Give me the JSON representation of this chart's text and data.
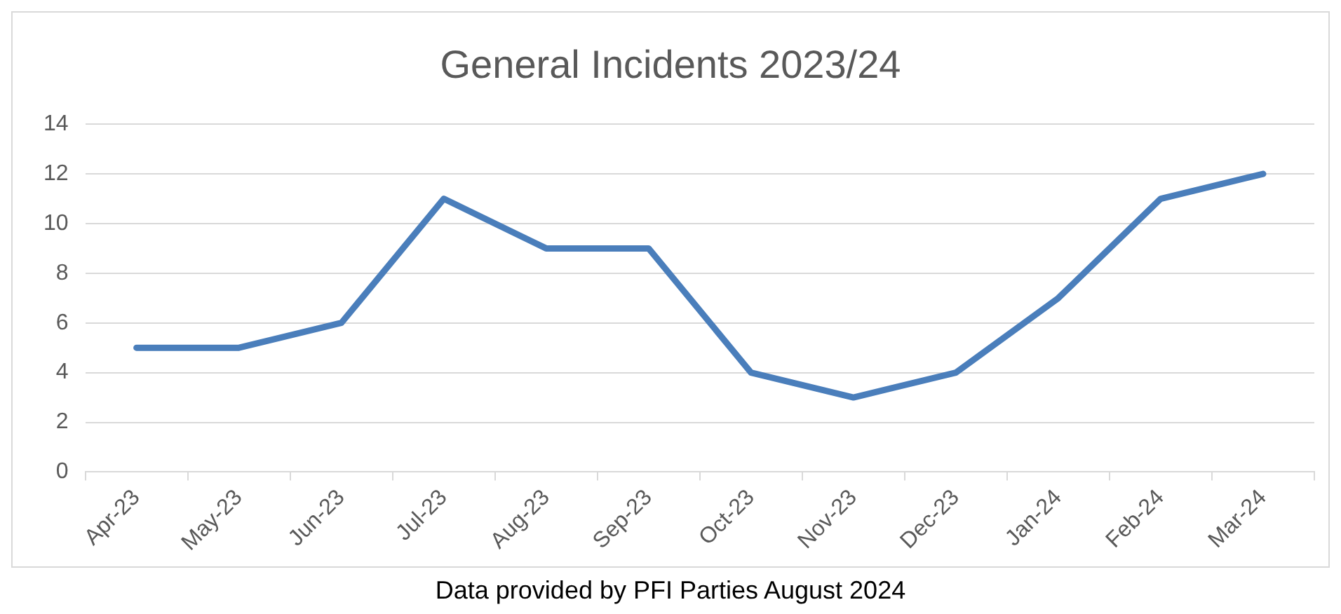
{
  "chart_data": {
    "type": "line",
    "title": "General Incidents 2023/24",
    "categories": [
      "Apr-23",
      "May-23",
      "Jun-23",
      "Jul-23",
      "Aug-23",
      "Sep-23",
      "Oct-23",
      "Nov-23",
      "Dec-23",
      "Jan-24",
      "Feb-24",
      "Mar-24"
    ],
    "series": [
      {
        "color": "#4a7ebb",
        "values": [
          5,
          5,
          6,
          11,
          9,
          9,
          4,
          3,
          4,
          7,
          11,
          12
        ]
      }
    ],
    "ylim": [
      0,
      14
    ],
    "yticks": [
      0,
      2,
      4,
      6,
      8,
      10,
      12,
      14
    ],
    "grid": "y",
    "marker": "none",
    "line_style": "solid",
    "annotations": [
      "Data provided by PFI Parties August 2024"
    ]
  }
}
